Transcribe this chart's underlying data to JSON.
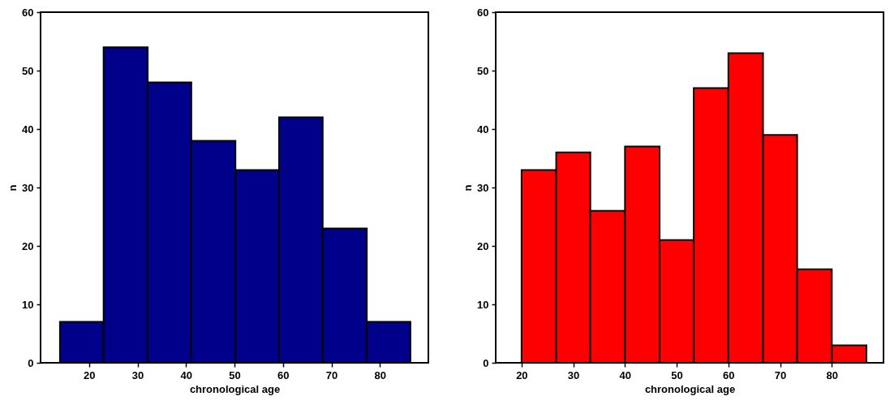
{
  "chart_data": [
    {
      "type": "histogram",
      "xlabel": "chronological age",
      "ylabel": "n",
      "bins": [
        14.0,
        23.0,
        32.1,
        41.1,
        50.2,
        59.2,
        68.2,
        77.3,
        86.3
      ],
      "values": [
        7,
        54,
        48,
        38,
        33,
        42,
        23,
        7
      ],
      "color": "#00008b",
      "xlim": [
        10,
        90
      ],
      "xticks": [
        20,
        30,
        40,
        50,
        60,
        70,
        80
      ],
      "ylim": [
        0,
        60
      ],
      "yticks": [
        0,
        10,
        20,
        30,
        40,
        50,
        60
      ]
    },
    {
      "type": "histogram",
      "xlabel": "chronological age",
      "ylabel": "n",
      "bins": [
        20,
        26.7,
        33.3,
        40,
        46.7,
        53.3,
        60,
        66.7,
        73.3,
        80,
        86.7
      ],
      "values": [
        33,
        36,
        26,
        37,
        21,
        47,
        53,
        39,
        16,
        3
      ],
      "color": "#ff0000",
      "xlim": [
        15,
        90
      ],
      "xticks": [
        20,
        30,
        40,
        50,
        60,
        70,
        80
      ],
      "ylim": [
        0,
        60
      ],
      "yticks": [
        0,
        10,
        20,
        30,
        40,
        50,
        60
      ]
    }
  ]
}
